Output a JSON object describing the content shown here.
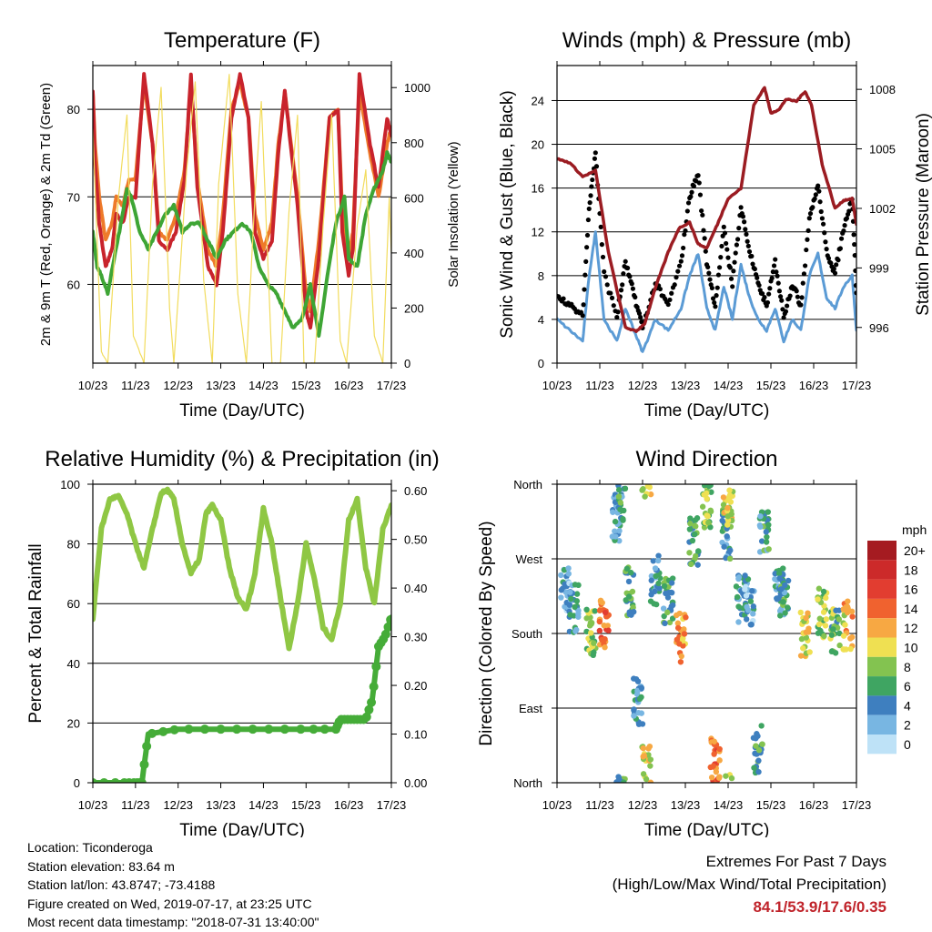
{
  "chart_data": [
    {
      "type": "line",
      "title": "Temperature (F)",
      "xlabel": "Time (Day/UTC)",
      "ylabel": "2m & 9m T (Red, Orange) & 2m Td (Green)",
      "y2label": "Solar Insolation (Yellow)",
      "x_ticks": [
        "10/23",
        "11/23",
        "12/23",
        "13/23",
        "14/23",
        "15/23",
        "16/23",
        "17/23"
      ],
      "ylim": [
        51,
        85
      ],
      "y_ticks": [
        60,
        70,
        80
      ],
      "y2lim": [
        0,
        1080
      ],
      "y2_ticks": [
        0,
        200,
        400,
        600,
        800,
        1000
      ],
      "grid": "horizontal",
      "series": [
        {
          "color": "#ee7a2a",
          "x_day": [
            0,
            0.05,
            0.15,
            0.3,
            0.45,
            0.55,
            0.7,
            0.85,
            1.0,
            1.2,
            1.4,
            1.55,
            1.75,
            1.95,
            2.15,
            2.3,
            2.45,
            2.7,
            2.9,
            3.05,
            3.25,
            3.45,
            3.65,
            3.8,
            4.0,
            4.2,
            4.35,
            4.5,
            4.8,
            5.0,
            5.1,
            5.3,
            5.55,
            5.75,
            5.85,
            6.0,
            6.1,
            6.25,
            6.5,
            6.7,
            6.9,
            7.0
          ],
          "values": [
            82,
            76,
            70,
            65,
            67,
            70,
            69,
            72,
            72,
            83,
            76,
            66,
            65,
            68,
            73,
            83,
            72,
            64,
            62,
            68,
            80,
            83,
            79,
            68,
            64,
            67,
            76,
            82,
            70,
            59,
            57,
            65,
            79,
            80,
            68,
            63,
            66,
            82,
            75,
            70,
            76,
            78
          ]
        },
        {
          "color": "#c8232c",
          "x_day": [
            0,
            0.05,
            0.15,
            0.3,
            0.45,
            0.55,
            0.7,
            0.85,
            1.0,
            1.2,
            1.4,
            1.55,
            1.75,
            1.95,
            2.15,
            2.3,
            2.45,
            2.7,
            2.9,
            3.05,
            3.25,
            3.45,
            3.65,
            3.8,
            4.0,
            4.2,
            4.35,
            4.5,
            4.8,
            5.0,
            5.1,
            5.3,
            5.55,
            5.75,
            5.85,
            6.0,
            6.1,
            6.25,
            6.5,
            6.7,
            6.9,
            7.0
          ],
          "values": [
            82,
            74,
            67,
            62,
            64,
            68,
            67,
            70,
            70,
            84,
            76,
            65,
            64,
            66,
            72,
            84,
            71,
            62,
            60,
            66,
            79,
            84,
            79,
            66,
            63,
            65,
            75,
            82,
            69,
            57,
            55,
            63,
            79,
            80,
            66,
            61,
            64,
            84,
            76,
            71,
            79,
            77
          ]
        },
        {
          "color": "#3ea535",
          "x_day": [
            0,
            0.1,
            0.2,
            0.35,
            0.5,
            0.7,
            0.8,
            0.9,
            1.1,
            1.3,
            1.5,
            1.7,
            1.9,
            2.1,
            2.3,
            2.5,
            2.7,
            2.9,
            3.1,
            3.3,
            3.5,
            3.7,
            3.9,
            4.1,
            4.3,
            4.5,
            4.7,
            4.9,
            5.1,
            5.3,
            5.5,
            5.7,
            5.9,
            6.0,
            6.2,
            6.4,
            6.6,
            6.8,
            6.9,
            7.0
          ],
          "values": [
            66,
            62,
            61,
            59,
            63,
            68,
            71,
            70,
            66,
            64,
            66,
            68,
            69,
            66,
            67,
            67,
            65,
            63,
            65,
            66,
            67,
            66,
            62,
            60,
            59,
            57,
            55,
            56,
            60,
            54,
            61,
            67,
            70,
            63,
            62,
            68,
            71,
            73,
            75,
            74
          ]
        },
        {
          "color": "#f2dc5d",
          "x_day": [
            0,
            0.2,
            0.35,
            0.6,
            0.8,
            0.95,
            1.2,
            1.4,
            1.6,
            1.8,
            1.9,
            2.2,
            2.4,
            2.6,
            2.8,
            2.95,
            3.2,
            3.4,
            3.6,
            3.8,
            3.95,
            4.2,
            4.4,
            4.6,
            4.8,
            4.95,
            5.2,
            5.4,
            5.6,
            5.8,
            5.95,
            6.2,
            6.4,
            6.6,
            6.8,
            6.95,
            7.0
          ],
          "values_y2": [
            850,
            40,
            0,
            600,
            900,
            100,
            0,
            650,
            1000,
            200,
            0,
            700,
            1020,
            300,
            0,
            650,
            1050,
            250,
            0,
            600,
            950,
            0,
            0,
            550,
            900,
            0,
            0,
            500,
            900,
            80,
            0,
            500,
            700,
            100,
            0,
            600,
            400
          ]
        }
      ]
    },
    {
      "type": "line",
      "title": "Winds (mph) & Pressure (mb)",
      "xlabel": "Time (Day/UTC)",
      "ylabel": "Sonic Wind & Gust (Blue, Black)",
      "y2label": "Station Pressure (Maroon)",
      "x_ticks": [
        "10/23",
        "11/23",
        "12/23",
        "13/23",
        "14/23",
        "15/23",
        "16/23",
        "17/23"
      ],
      "ylim": [
        0,
        27.2
      ],
      "y_ticks": [
        0,
        4,
        8,
        12,
        16,
        20,
        24
      ],
      "y2lim": [
        994.2,
        1009.2
      ],
      "y2_ticks": [
        996,
        999,
        1002,
        1005,
        1008
      ],
      "grid": "horizontal",
      "series": [
        {
          "color": "#5b9bd5",
          "x_day": [
            0,
            0.3,
            0.6,
            0.75,
            0.9,
            1.1,
            1.4,
            1.6,
            1.8,
            2.0,
            2.3,
            2.6,
            2.9,
            3.1,
            3.3,
            3.5,
            3.7,
            3.9,
            4.1,
            4.3,
            4.5,
            4.7,
            4.9,
            5.1,
            5.3,
            5.5,
            5.7,
            5.9,
            6.1,
            6.3,
            6.5,
            6.7,
            6.9,
            7.0
          ],
          "values": [
            4,
            3,
            2,
            8,
            12,
            4,
            2,
            5,
            3,
            1,
            4,
            3,
            5,
            8,
            10,
            5,
            3,
            7,
            4,
            9,
            6,
            4,
            3,
            5,
            2,
            4,
            3,
            8,
            10,
            6,
            5,
            7,
            8,
            3
          ]
        },
        {
          "color": "#000000",
          "x_day": [
            0,
            0.3,
            0.6,
            0.75,
            0.9,
            1.1,
            1.4,
            1.6,
            1.8,
            2.0,
            2.3,
            2.6,
            2.9,
            3.1,
            3.3,
            3.5,
            3.7,
            3.9,
            4.1,
            4.3,
            4.5,
            4.7,
            4.9,
            5.1,
            5.3,
            5.5,
            5.7,
            5.9,
            6.1,
            6.3,
            6.5,
            6.7,
            6.9,
            7.0
          ],
          "values": [
            6,
            5,
            4,
            14,
            19,
            8,
            4,
            9,
            6,
            3,
            7,
            5,
            9,
            15,
            17,
            9,
            5,
            12,
            7,
            14,
            10,
            7,
            5,
            9,
            4,
            7,
            5,
            13,
            16,
            10,
            8,
            12,
            15,
            6
          ]
        },
        {
          "color": "#9b1c22",
          "x_day": [
            0,
            0.3,
            0.6,
            0.9,
            1.2,
            1.6,
            1.85,
            2.05,
            2.3,
            2.6,
            2.85,
            3.1,
            3.3,
            3.5,
            3.75,
            4.0,
            4.3,
            4.6,
            4.85,
            5.0,
            5.2,
            5.35,
            5.6,
            5.8,
            5.95,
            6.2,
            6.5,
            6.7,
            6.9,
            7.0
          ],
          "values_y2": [
            1004.5,
            1004.3,
            1003.6,
            1003.9,
            999.8,
            996,
            995.8,
            996.2,
            998,
            999.8,
            1001,
            1001.3,
            1000.2,
            1000,
            1001.2,
            1002.5,
            1003,
            1007.2,
            1008.1,
            1006.8,
            1007,
            1007.5,
            1007.4,
            1007.9,
            1007.2,
            1004.2,
            1002,
            1002.4,
            1002.5,
            1001.2
          ]
        }
      ]
    },
    {
      "type": "line",
      "title": "Relative Humidity (%) & Precipitation (in)",
      "xlabel": "Time (Day/UTC)",
      "ylabel": "Percent & Total Rainfall",
      "x_ticks": [
        "10/23",
        "11/23",
        "12/23",
        "13/23",
        "14/23",
        "15/23",
        "16/23",
        "17/23"
      ],
      "ylim": [
        0,
        100
      ],
      "y_ticks": [
        0,
        20,
        40,
        60,
        80,
        100
      ],
      "y2lim": [
        0,
        0.6134
      ],
      "y2_ticks": [
        "0.00",
        "0.10",
        "0.20",
        "0.30",
        "0.40",
        "0.50",
        "0.60"
      ],
      "grid": "horizontal",
      "series": [
        {
          "color": "#8fc744",
          "x_day": [
            0,
            0.2,
            0.4,
            0.6,
            0.8,
            1.0,
            1.2,
            1.4,
            1.6,
            1.75,
            1.9,
            2.1,
            2.3,
            2.5,
            2.65,
            2.8,
            3.0,
            3.2,
            3.4,
            3.6,
            3.8,
            4.0,
            4.2,
            4.4,
            4.6,
            4.8,
            5.0,
            5.2,
            5.4,
            5.6,
            5.8,
            6.0,
            6.2,
            6.4,
            6.6,
            6.8,
            7.0
          ],
          "values": [
            55,
            85,
            95,
            96,
            90,
            80,
            72,
            85,
            97,
            98,
            95,
            80,
            70,
            75,
            90,
            93,
            88,
            72,
            62,
            58,
            70,
            92,
            80,
            62,
            45,
            60,
            80,
            68,
            52,
            48,
            60,
            88,
            95,
            72,
            60,
            85,
            93
          ]
        },
        {
          "color": "#45ac38",
          "x_day": [
            0,
            0.7,
            1.0,
            1.15,
            1.3,
            2.0,
            3.0,
            4.0,
            5.0,
            5.7,
            5.8,
            6.0,
            6.2,
            6.4,
            6.55,
            6.7,
            6.85,
            7.0
          ],
          "values_y2": [
            0,
            0,
            0,
            0,
            0.1,
            0.11,
            0.11,
            0.11,
            0.11,
            0.11,
            0.13,
            0.13,
            0.13,
            0.13,
            0.17,
            0.28,
            0.3,
            0.34
          ]
        }
      ]
    },
    {
      "type": "scatter",
      "title": "Wind Direction",
      "xlabel": "Time (Day/UTC)",
      "ylabel": "Direction (Colored By Speed)",
      "x_ticks": [
        "10/23",
        "11/23",
        "12/23",
        "13/23",
        "14/23",
        "15/23",
        "16/23",
        "17/23"
      ],
      "y_ticks": [
        "North",
        "East",
        "South",
        "West",
        "North"
      ],
      "ylim": [
        0,
        360
      ],
      "grid": "horizontal",
      "legend": {
        "title": "mph",
        "placement": "right",
        "labels": [
          "20+",
          "18",
          "16",
          "14",
          "12",
          "10",
          "8",
          "6",
          "4",
          "2",
          "0"
        ],
        "colors": [
          "#a51b21",
          "#cc2a2a",
          "#e23d30",
          "#f0622f",
          "#f7a843",
          "#efe052",
          "#83c350",
          "#3fa562",
          "#3e7fbf",
          "#78b6e2",
          "#bee2f7"
        ]
      },
      "clusters": [
        {
          "x_day": 0.2,
          "dir": 230,
          "speed": 3
        },
        {
          "x_day": 0.4,
          "dir": 210,
          "speed": 4
        },
        {
          "x_day": 0.8,
          "dir": 180,
          "speed": 8
        },
        {
          "x_day": 1.1,
          "dir": 190,
          "speed": 14
        },
        {
          "x_day": 1.4,
          "dir": 320,
          "speed": 4
        },
        {
          "x_day": 1.5,
          "dir": 340,
          "speed": 5
        },
        {
          "x_day": 1.7,
          "dir": 230,
          "speed": 6
        },
        {
          "x_day": 1.9,
          "dir": 100,
          "speed": 4
        },
        {
          "x_day": 2.1,
          "dir": 15,
          "speed": 10
        },
        {
          "x_day": 2.3,
          "dir": 245,
          "speed": 4
        },
        {
          "x_day": 2.6,
          "dir": 220,
          "speed": 5
        },
        {
          "x_day": 2.9,
          "dir": 175,
          "speed": 12
        },
        {
          "x_day": 3.2,
          "dir": 290,
          "speed": 6
        },
        {
          "x_day": 3.5,
          "dir": 330,
          "speed": 8
        },
        {
          "x_day": 3.7,
          "dir": 30,
          "speed": 14
        },
        {
          "x_day": 3.95,
          "dir": 300,
          "speed": 5
        },
        {
          "x_day": 4.0,
          "dir": 340,
          "speed": 10
        },
        {
          "x_day": 4.3,
          "dir": 220,
          "speed": 4
        },
        {
          "x_day": 4.5,
          "dir": 220,
          "speed": 3
        },
        {
          "x_day": 4.7,
          "dir": 40,
          "speed": 6
        },
        {
          "x_day": 4.85,
          "dir": 300,
          "speed": 5
        },
        {
          "x_day": 5.2,
          "dir": 230,
          "speed": 4
        },
        {
          "x_day": 5.3,
          "dir": 230,
          "speed": 5
        },
        {
          "x_day": 5.8,
          "dir": 180,
          "speed": 10
        },
        {
          "x_day": 6.2,
          "dir": 205,
          "speed": 8
        },
        {
          "x_day": 6.5,
          "dir": 180,
          "speed": 7
        },
        {
          "x_day": 6.8,
          "dir": 190,
          "speed": 11
        }
      ]
    }
  ],
  "info": {
    "location": "Location: Ticonderoga",
    "elevation": "Station elevation: 83.64 m",
    "latlon": "Station lat/lon: 43.8747; -73.4188",
    "created": "Figure created on Wed, 2019-07-17, at 23:25 UTC",
    "recent": "Most recent data timestamp: \"2018-07-31 13:40:00\""
  },
  "extremes": {
    "heading": "Extremes For Past 7 Days",
    "subheading": "(High/Low/Max Wind/Total Precipitation)",
    "values": "84.1/53.9/17.6/0.35"
  }
}
